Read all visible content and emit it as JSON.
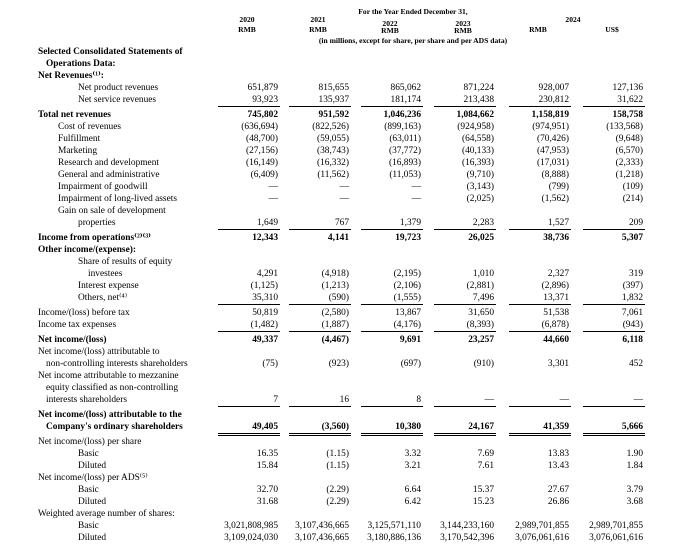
{
  "header": {
    "period_title": "For the Year Ended December 31,",
    "subtitle": "(in millions, except for share, per share and per ADS data)",
    "group_year": "2024",
    "columns": [
      {
        "year": "2020",
        "currency": "RMB"
      },
      {
        "year": "2021",
        "currency": "RMB"
      },
      {
        "year": "2022",
        "currency": "RMB"
      },
      {
        "year": "2023",
        "currency": "RMB"
      },
      {
        "currency": "RMB"
      },
      {
        "currency": "US$"
      }
    ]
  },
  "table": {
    "rows": [
      {
        "label": [
          "Selected Consolidated Statements of",
          "Operations Data:"
        ]
      },
      {
        "label": [
          "Net Revenues⁽¹⁾:"
        ]
      },
      {
        "label": [
          "Net product revenues"
        ],
        "values": [
          "651,879",
          "815,655",
          "865,062",
          "871,224",
          "928,007",
          "127,136"
        ]
      },
      {
        "label": [
          "Net service revenues"
        ],
        "values": [
          "93,923",
          "135,937",
          "181,174",
          "213,438",
          "230,812",
          "31,622"
        ]
      },
      {
        "label": [
          "Total net revenues"
        ],
        "values": [
          "745,802",
          "951,592",
          "1,046,236",
          "1,084,662",
          "1,158,819",
          "158,758"
        ]
      },
      {
        "label": [
          "Cost of revenues"
        ],
        "values": [
          "(636,694)",
          "(822,526)",
          "(899,163)",
          "(924,958)",
          "(974,951)",
          "(133,568)"
        ]
      },
      {
        "label": [
          "Fulfillment"
        ],
        "values": [
          "(48,700)",
          "(59,055)",
          "(63,011)",
          "(64,558)",
          "(70,426)",
          "(9,648)"
        ]
      },
      {
        "label": [
          "Marketing"
        ],
        "values": [
          "(27,156)",
          "(38,743)",
          "(37,772)",
          "(40,133)",
          "(47,953)",
          "(6,570)"
        ]
      },
      {
        "label": [
          "Research and development"
        ],
        "values": [
          "(16,149)",
          "(16,332)",
          "(16,893)",
          "(16,393)",
          "(17,031)",
          "(2,333)"
        ]
      },
      {
        "label": [
          "General and administrative"
        ],
        "values": [
          "(6,409)",
          "(11,562)",
          "(11,053)",
          "(9,710)",
          "(8,888)",
          "(1,218)"
        ]
      },
      {
        "label": [
          "Impairment of goodwill"
        ],
        "values": [
          "—",
          "—",
          "—",
          "(3,143)",
          "(799)",
          "(109)"
        ]
      },
      {
        "label": [
          "Impairment of long-lived assets"
        ],
        "values": [
          "—",
          "—",
          "—",
          "(2,025)",
          "(1,562)",
          "(214)"
        ]
      },
      {
        "label": [
          "Gain on sale of development",
          "properties"
        ],
        "values": [
          "1,649",
          "767",
          "1,379",
          "2,283",
          "1,527",
          "209"
        ]
      },
      {
        "label": [
          "Income from operations⁽²⁾⁽³⁾"
        ],
        "values": [
          "12,343",
          "4,141",
          "19,723",
          "26,025",
          "38,736",
          "5,307"
        ]
      },
      {
        "label": [
          "Other income/(expense):"
        ]
      },
      {
        "label": [
          "Share of results of equity",
          "investees"
        ],
        "values": [
          "4,291",
          "(4,918)",
          "(2,195)",
          "1,010",
          "2,327",
          "319"
        ]
      },
      {
        "label": [
          "Interest expense"
        ],
        "values": [
          "(1,125)",
          "(1,213)",
          "(2,106)",
          "(2,881)",
          "(2,896)",
          "(397)"
        ]
      },
      {
        "label": [
          "Others, net⁽⁴⁾"
        ],
        "values": [
          "35,310",
          "(590)",
          "(1,555)",
          "7,496",
          "13,371",
          "1,832"
        ]
      },
      {
        "label": [
          "Income/(loss) before tax"
        ],
        "values": [
          "50,819",
          "(2,580)",
          "13,867",
          "31,650",
          "51,538",
          "7,061"
        ]
      },
      {
        "label": [
          "Income tax expenses"
        ],
        "values": [
          "(1,482)",
          "(1,887)",
          "(4,176)",
          "(8,393)",
          "(6,878)",
          "(943)"
        ]
      },
      {
        "label": [
          "Net income/(loss)"
        ],
        "values": [
          "49,337",
          "(4,467)",
          "9,691",
          "23,257",
          "44,660",
          "6,118"
        ]
      },
      {
        "label": [
          "Net income/(loss) attributable to",
          "non-controlling interests shareholders"
        ],
        "values": [
          "(75)",
          "(923)",
          "(697)",
          "(910)",
          "3,301",
          "452"
        ]
      },
      {
        "label": [
          "Net income attributable to mezzanine",
          "equity classified as non-controlling",
          "interests shareholders"
        ],
        "values": [
          "7",
          "16",
          "8",
          "—",
          "—",
          "—"
        ]
      },
      {
        "label": [
          "Net income/(loss) attributable to the",
          "Company's ordinary shareholders"
        ],
        "values": [
          "49,405",
          "(3,560)",
          "10,380",
          "24,167",
          "41,359",
          "5,666"
        ]
      },
      {
        "label": [
          "Net income/(loss) per share"
        ]
      },
      {
        "label": [
          "Basic"
        ],
        "values": [
          "16.35",
          "(1.15)",
          "3.32",
          "7.69",
          "13.83",
          "1.90"
        ]
      },
      {
        "label": [
          "Diluted"
        ],
        "values": [
          "15.84",
          "(1.15)",
          "3.21",
          "7.61",
          "13.43",
          "1.84"
        ]
      },
      {
        "label": [
          "Net income/(loss) per ADS⁽⁵⁾"
        ]
      },
      {
        "label": [
          "Basic"
        ],
        "values": [
          "32.70",
          "(2.29)",
          "6.64",
          "15.37",
          "27.67",
          "3.79"
        ]
      },
      {
        "label": [
          "Diluted"
        ],
        "values": [
          "31.68",
          "(2.29)",
          "6.42",
          "15.23",
          "26.86",
          "3.68"
        ]
      },
      {
        "label": [
          "Weighted average number of shares:"
        ]
      },
      {
        "label": [
          "Basic"
        ],
        "values": [
          "3,021,808,985",
          "3,107,436,665",
          "3,125,571,110",
          "3,144,233,160",
          "2,989,701,855",
          "2,989,701,855"
        ]
      },
      {
        "label": [
          "Diluted"
        ],
        "values": [
          "3,109,024,030",
          "3,107,436,665",
          "3,180,886,136",
          "3,170,542,396",
          "3,076,061,616",
          "3,076,061,616"
        ]
      }
    ]
  }
}
